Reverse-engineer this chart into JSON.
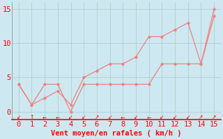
{
  "xlabel": "Vent moyen/en rafales ( km/h )",
  "background_color": "#cde8f0",
  "grid_color": "#aacccc",
  "line_color": "#f08080",
  "xlim": [
    -0.5,
    15.5
  ],
  "ylim": [
    -1.2,
    16
  ],
  "xticks": [
    0,
    1,
    2,
    3,
    4,
    5,
    6,
    7,
    8,
    9,
    10,
    11,
    12,
    13,
    14,
    15
  ],
  "yticks": [
    0,
    5,
    10,
    15
  ],
  "x": [
    0,
    1,
    2,
    3,
    4,
    5,
    6,
    7,
    8,
    9,
    10,
    11,
    12,
    13,
    14,
    15
  ],
  "y_flat": [
    4,
    1,
    4,
    4,
    0,
    4,
    4,
    4,
    4,
    4,
    4,
    7,
    7,
    7,
    7,
    14
  ],
  "y_rise": [
    4,
    1,
    2,
    3,
    1,
    5,
    6,
    7,
    7,
    8,
    11,
    11,
    12,
    13,
    7,
    15
  ],
  "xlabel_fontsize": 7.5,
  "tick_fontsize": 7.5
}
